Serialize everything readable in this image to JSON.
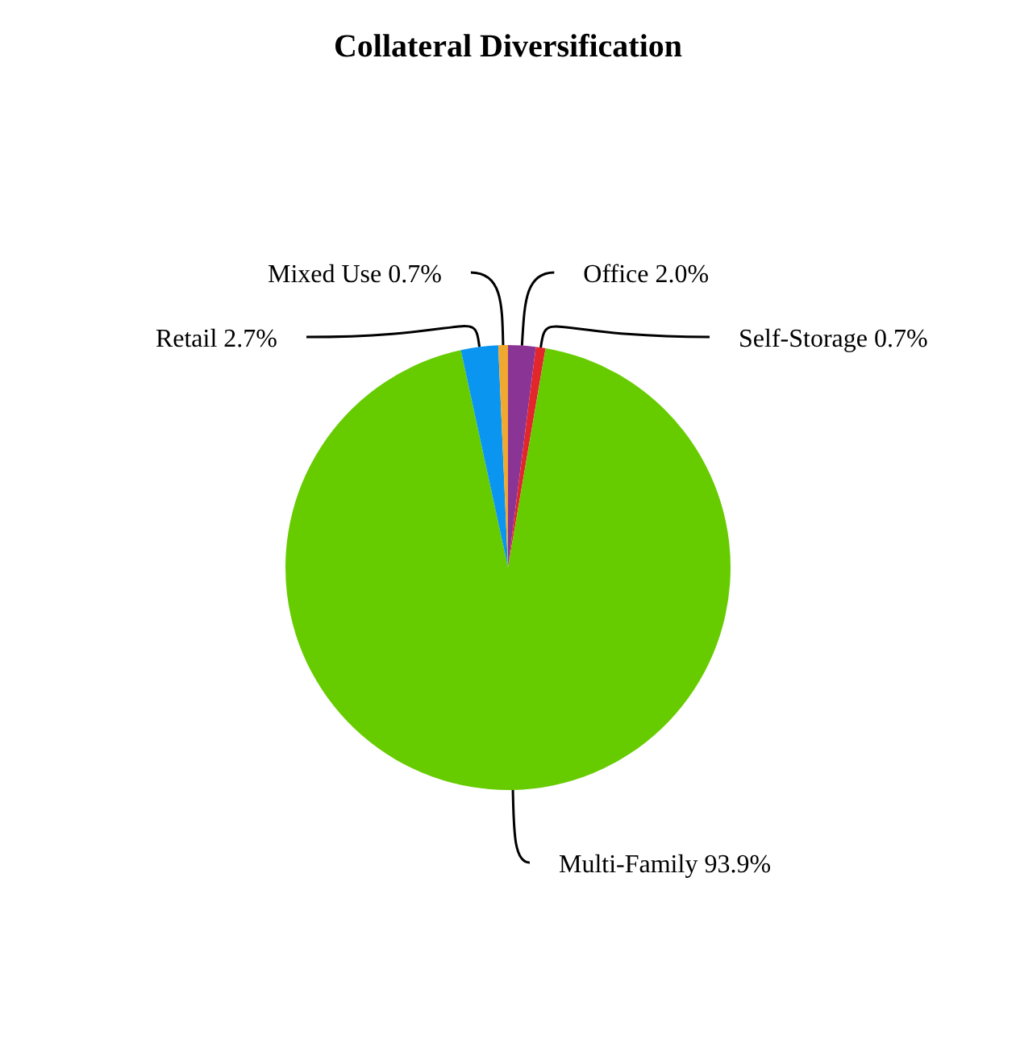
{
  "chart_data": {
    "type": "pie",
    "title": "Collateral Diversification",
    "categories": [
      "Office",
      "Self-Storage",
      "Multi-Family",
      "Retail",
      "Mixed Use"
    ],
    "values": [
      2.0,
      0.7,
      93.9,
      2.7,
      0.7
    ],
    "value_labels": [
      "2.0%",
      "0.7%",
      "93.9%",
      "2.7%",
      "0.7%"
    ],
    "colors": [
      "#8a3596",
      "#e3262c",
      "#66cc00",
      "#0a96f0",
      "#f0a830"
    ],
    "legend": false
  }
}
